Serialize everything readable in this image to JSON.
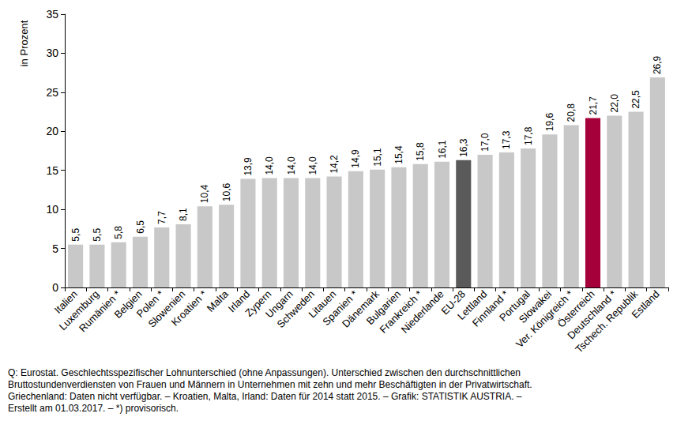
{
  "chart_data": {
    "type": "bar",
    "y_label": "in Prozent",
    "categories": [
      "Italien",
      "Luxemburg",
      "Rumänien *",
      "Belgien",
      "Polen *",
      "Slowenien",
      "Kroatien *",
      "Malta",
      "Irland",
      "Zypern",
      "Ungarn",
      "Schweden",
      "Litauen",
      "Spanien *",
      "Dänemark",
      "Bulgarien",
      "Frankreich *",
      "Niederlande",
      "EU-28",
      "Lettland",
      "Finnland *",
      "Portugal",
      "Slowakei",
      "Ver. Königreich *",
      "Österreich",
      "Deutschland *",
      "Tschech. Republik",
      "Estland"
    ],
    "values": [
      5.5,
      5.5,
      5.8,
      6.5,
      7.7,
      8.1,
      10.4,
      10.6,
      13.9,
      14.0,
      14.0,
      14.0,
      14.2,
      14.9,
      15.1,
      15.4,
      15.8,
      16.1,
      16.3,
      17.0,
      17.3,
      17.8,
      19.6,
      20.8,
      21.7,
      22.0,
      22.5,
      26.9
    ],
    "value_labels": [
      "5,5",
      "5,5",
      "5,8",
      "6,5",
      "7,7",
      "8,1",
      "10,4",
      "10,6",
      "13,9",
      "14,0",
      "14,0",
      "14,0",
      "14,2",
      "14,9",
      "15,1",
      "15,4",
      "15,8",
      "16,1",
      "16,3",
      "17,0",
      "17,3",
      "17,8",
      "19,6",
      "20,8",
      "21,7",
      "22,0",
      "22,5",
      "26,9"
    ],
    "colors": [
      "#c8c8c8",
      "#c8c8c8",
      "#c8c8c8",
      "#c8c8c8",
      "#c8c8c8",
      "#c8c8c8",
      "#c8c8c8",
      "#c8c8c8",
      "#c8c8c8",
      "#c8c8c8",
      "#c8c8c8",
      "#c8c8c8",
      "#c8c8c8",
      "#c8c8c8",
      "#c8c8c8",
      "#c8c8c8",
      "#c8c8c8",
      "#c8c8c8",
      "#5a5a5a",
      "#c8c8c8",
      "#c8c8c8",
      "#c8c8c8",
      "#c8c8c8",
      "#c8c8c8",
      "#a6003a",
      "#c8c8c8",
      "#c8c8c8",
      "#c8c8c8"
    ],
    "ylim": [
      0,
      35
    ],
    "yticks": [
      0,
      5,
      10,
      15,
      20,
      25,
      30,
      35
    ],
    "grid": false,
    "data_labels": true,
    "annotations": [
      "Q: Eurostat. Geschlechtsspezifischer Lohnunterschied (ohne Anpassungen). Unterschied zwischen den durchschnittlichen",
      "Bruttostundenverdiensten von Frauen und Männern in Unternehmen mit zehn und mehr Beschäftigten in der Privatwirtschaft.",
      "Griechenland: Daten nicht verfügbar. – Kroatien, Malta, Irland: Daten für 2014 statt 2015. – Grafik: STATISTIK AUSTRIA. –",
      "Erstellt am 01.03.2017. – *) provisorisch."
    ]
  }
}
